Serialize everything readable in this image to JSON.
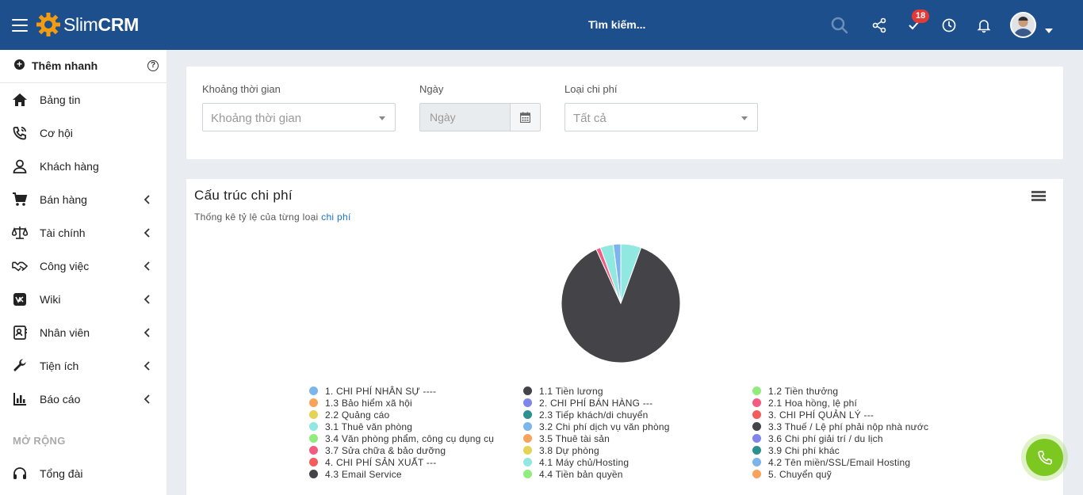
{
  "app": {
    "logo_light": "Slim",
    "logo_bold": "CRM"
  },
  "header": {
    "search_placeholder": "Tìm kiếm...",
    "notification_badge": "18"
  },
  "sidebar": {
    "quick_add": "Thêm nhanh",
    "items": [
      {
        "label": "Bảng tin",
        "icon": "home-icon"
      },
      {
        "label": "Cơ hội",
        "icon": "phone-call-icon"
      },
      {
        "label": "Khách hàng",
        "icon": "user-icon"
      },
      {
        "label": "Bán hàng",
        "icon": "cart-icon"
      },
      {
        "label": "Tài chính",
        "icon": "balance-scale-icon"
      },
      {
        "label": "Công việc",
        "icon": "handshake-icon"
      },
      {
        "label": "Wiki",
        "icon": "vk-icon"
      },
      {
        "label": "Nhân viên",
        "icon": "id-card-icon"
      },
      {
        "label": "Tiện ích",
        "icon": "wrench-icon"
      },
      {
        "label": "Báo cáo",
        "icon": "bar-chart-icon"
      }
    ],
    "section_label": "MỞ RỘNG",
    "extra_item": {
      "label": "Tổng đài",
      "icon": "headset-icon"
    }
  },
  "filters": {
    "period_label": "Khoảng thời gian",
    "period_placeholder": "Khoảng thời gian",
    "date_label": "Ngày",
    "date_placeholder": "Ngày",
    "cost_type_label": "Loại chi phí",
    "cost_type_value": "Tất cả"
  },
  "chart": {
    "title": "Cấu trúc chi phí",
    "subtitle_prefix": "Thống kê tỷ lệ của từng loại ",
    "subtitle_link": "chi phí"
  },
  "chart_data": {
    "type": "pie",
    "title": "Cấu trúc chi phí",
    "subtitle": "Thống kê tỷ lệ của từng loại chi phí",
    "legend_position": "bottom",
    "series": [
      {
        "name": "1. CHI PHÍ NHÂN SỰ ----",
        "value": 0,
        "color": "#7cb5ec"
      },
      {
        "name": "1.1 Tiền lương",
        "value": 0,
        "color": "#434348"
      },
      {
        "name": "1.2 Tiền thưởng",
        "value": 0,
        "color": "#90ed7d"
      },
      {
        "name": "1.3 Bảo hiểm xã hội",
        "value": 0,
        "color": "#f7a35c"
      },
      {
        "name": "2. CHI PHÍ BÁN HÀNG ---",
        "value": 0,
        "color": "#8085e9"
      },
      {
        "name": "2.1 Hoa hồng, lệ phí",
        "value": 0,
        "color": "#f15c80"
      },
      {
        "name": "2.2 Quảng cáo",
        "value": 0,
        "color": "#e4d354"
      },
      {
        "name": "2.3 Tiếp khách/di chuyển",
        "value": 0,
        "color": "#2b908f"
      },
      {
        "name": "3. CHI PHÍ QUẢN LÝ ---",
        "value": 0,
        "color": "#f45b5b"
      },
      {
        "name": "3.1 Thuê văn phòng",
        "value": 5.5,
        "color": "#91e8e1"
      },
      {
        "name": "3.2 Chi phí dịch vụ văn phòng",
        "value": 0,
        "color": "#7cb5ec"
      },
      {
        "name": "3.3 Thuế / Lệ phí phải nộp nhà nước",
        "value": 86.5,
        "color": "#434348"
      },
      {
        "name": "3.4 Văn phòng phẩm, công cụ dụng cụ",
        "value": 0,
        "color": "#90ed7d"
      },
      {
        "name": "3.5 Thuê tài sản",
        "value": 0,
        "color": "#f7a35c"
      },
      {
        "name": "3.6 Chi phí giải trí / du lịch",
        "value": 0,
        "color": "#8085e9"
      },
      {
        "name": "3.7 Sửa chữa & bảo dưỡng",
        "value": 1.2,
        "color": "#f15c80"
      },
      {
        "name": "3.8 Dự phòng",
        "value": 0,
        "color": "#e4d354"
      },
      {
        "name": "3.9 Chi phí khác",
        "value": 0,
        "color": "#2b908f"
      },
      {
        "name": "4. CHI PHÍ SẢN XUẤT ---",
        "value": 0,
        "color": "#f45b5b"
      },
      {
        "name": "4.1 Máy chủ/Hosting",
        "value": 3.5,
        "color": "#91e8e1"
      },
      {
        "name": "4.2 Tên miền/SSL/Email Hosting",
        "value": 2.0,
        "color": "#7cb5ec"
      },
      {
        "name": "4.3 Email Service",
        "value": 0,
        "color": "#434348"
      },
      {
        "name": "4.4 Tiền bản quyền",
        "value": 0,
        "color": "#90ed7d"
      },
      {
        "name": "5. Chuyển quỹ",
        "value": 0,
        "color": "#f7a35c"
      }
    ]
  }
}
